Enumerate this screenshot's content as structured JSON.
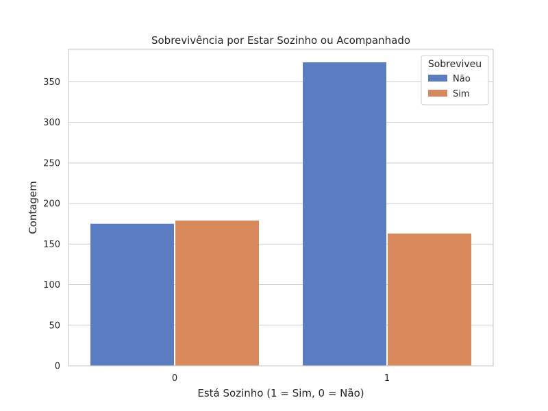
{
  "chart_data": {
    "type": "bar",
    "title": "Sobrevivência por Estar Sozinho ou Acompanhado",
    "xlabel": "Está Sozinho (1 = Sim, 0 = Não)",
    "ylabel": "Contagem",
    "categories": [
      "0",
      "1"
    ],
    "series": [
      {
        "name": "Não",
        "color": "#5a7dc2",
        "values": [
          175,
          374
        ]
      },
      {
        "name": "Sim",
        "color": "#d8895c",
        "values": [
          179,
          163
        ]
      }
    ],
    "ylim": [
      0,
      390
    ],
    "yticks": [
      0,
      50,
      100,
      150,
      200,
      250,
      300,
      350
    ],
    "grid": true,
    "legend": {
      "title": "Sobreviveu",
      "position": "top-right"
    }
  }
}
